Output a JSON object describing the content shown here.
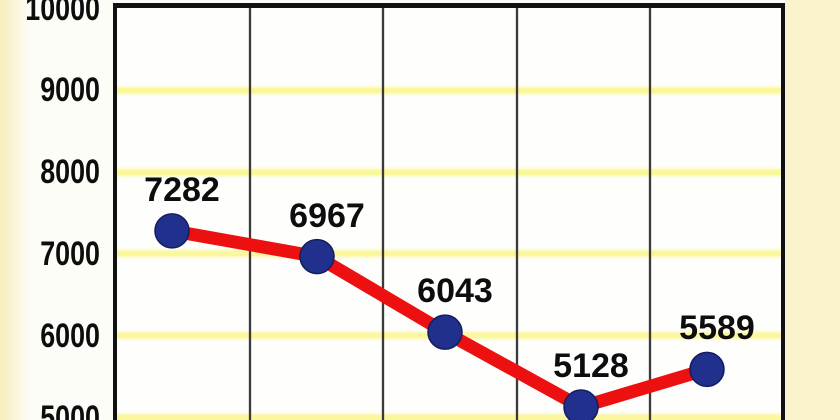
{
  "chart_data": {
    "type": "line",
    "values": [
      7282,
      6967,
      6043,
      5128,
      5589
    ],
    "data_labels": [
      "7282",
      "6967",
      "6043",
      "5128",
      "5589"
    ],
    "yticks": [
      "10000",
      "9000",
      "8000",
      "7000",
      "6000",
      "5000"
    ],
    "ytick_values": [
      10000,
      9000,
      8000,
      7000,
      6000,
      5000
    ],
    "ylim_visible": [
      5000,
      10000
    ],
    "title": "",
    "xlabel": "",
    "ylabel": "",
    "legend_position": "none",
    "grid": {
      "horizontal": true,
      "vertical": true
    },
    "marker_shape": "circle",
    "colors": {
      "line": "#ed1010",
      "marker": "#20308c",
      "marker_edge": "#141d5e",
      "h_gridline": "#fbf79c",
      "v_gridline": "#3a3a3a",
      "plot_border": "#111111",
      "plot_background": "#fefefd",
      "page_background": "#fdfdf8",
      "side_panel": "#fbf3cc",
      "left_fade": "#f8edbc",
      "text": "#0d0d0d"
    }
  }
}
